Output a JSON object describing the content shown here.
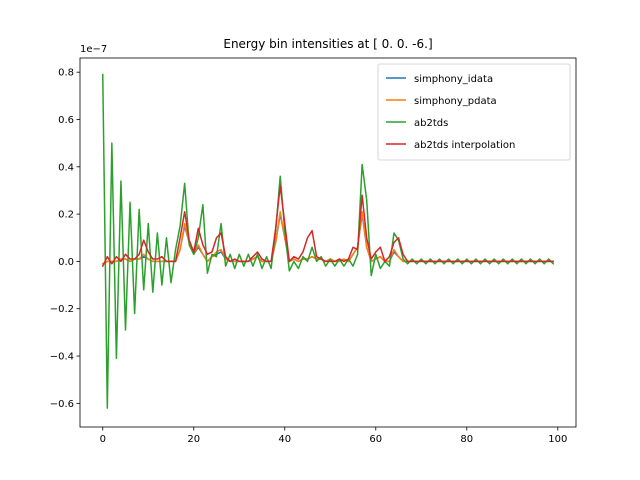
{
  "chart_data": {
    "type": "line",
    "title": "Energy bin intensities at [ 0.  0. -6.]",
    "xlabel": "",
    "ylabel": "",
    "offset_label": "1e−7",
    "xlim": [
      -5,
      104
    ],
    "ylim": [
      -0.7,
      0.86
    ],
    "xticks": [
      0,
      20,
      40,
      60,
      80,
      100
    ],
    "yticks": [
      -0.6,
      -0.4,
      -0.2,
      0.0,
      0.2,
      0.4,
      0.6,
      0.8
    ],
    "ytick_labels": [
      "−0.6",
      "−0.4",
      "−0.2",
      "0.0",
      "0.2",
      "0.4",
      "0.6",
      "0.8"
    ],
    "grid": false,
    "legend_position": "top-right",
    "x": [
      0,
      1,
      2,
      3,
      4,
      5,
      6,
      7,
      8,
      9,
      10,
      11,
      12,
      13,
      14,
      15,
      16,
      17,
      18,
      19,
      20,
      21,
      22,
      23,
      24,
      25,
      26,
      27,
      28,
      29,
      30,
      31,
      32,
      33,
      34,
      35,
      36,
      37,
      38,
      39,
      40,
      41,
      42,
      43,
      44,
      45,
      46,
      47,
      48,
      49,
      50,
      51,
      52,
      53,
      54,
      55,
      56,
      57,
      58,
      59,
      60,
      61,
      62,
      63,
      64,
      65,
      66,
      67,
      68,
      69,
      70,
      71,
      72,
      73,
      74,
      75,
      76,
      77,
      78,
      79,
      80,
      81,
      82,
      83,
      84,
      85,
      86,
      87,
      88,
      89,
      90,
      91,
      92,
      93,
      94,
      95,
      96,
      97,
      98,
      99
    ],
    "series": [
      {
        "name": "simphony_idata",
        "color": "#1f77b4",
        "values": [
          -0.01,
          0.0,
          0.0,
          0.0,
          0.01,
          0.01,
          0.0,
          0.01,
          0.01,
          0.02,
          0.01,
          0.0,
          0.0,
          0.0,
          0.0,
          0.0,
          0.0,
          0.05,
          0.15,
          0.08,
          0.03,
          0.06,
          0.03,
          0.0,
          0.02,
          0.03,
          0.04,
          0.01,
          0.0,
          0.0,
          0.0,
          0.0,
          0.0,
          0.01,
          0.02,
          0.0,
          0.0,
          0.0,
          0.08,
          0.2,
          0.1,
          0.0,
          0.01,
          0.0,
          0.01,
          0.01,
          0.02,
          0.01,
          0.01,
          0.0,
          0.01,
          0.0,
          0.0,
          0.01,
          0.0,
          0.03,
          0.06,
          0.2,
          0.06,
          0.0,
          0.01,
          0.02,
          0.0,
          0.0,
          0.04,
          0.02,
          0.0,
          0.0,
          0.0,
          0.0,
          0.0,
          0.0,
          0.0,
          0.0,
          0.0,
          0.0,
          0.0,
          0.0,
          0.0,
          0.0,
          0.0,
          0.0,
          0.0,
          0.0,
          0.0,
          0.0,
          0.0,
          0.0,
          0.0,
          0.0,
          0.0,
          0.0,
          0.0,
          0.0,
          0.0,
          0.0,
          0.0,
          0.0,
          0.0,
          0.0
        ]
      },
      {
        "name": "simphony_pdata",
        "color": "#ff7f0e",
        "values": [
          -0.01,
          0.0,
          0.0,
          0.0,
          0.01,
          0.01,
          0.0,
          0.01,
          0.01,
          0.03,
          0.01,
          0.0,
          0.0,
          0.0,
          0.0,
          0.0,
          0.0,
          0.05,
          0.16,
          0.08,
          0.03,
          0.07,
          0.03,
          0.0,
          0.02,
          0.04,
          0.05,
          0.01,
          0.0,
          0.0,
          0.0,
          0.0,
          0.0,
          0.01,
          0.02,
          0.0,
          0.0,
          0.0,
          0.08,
          0.21,
          0.1,
          0.0,
          0.01,
          0.0,
          0.01,
          0.01,
          0.02,
          0.01,
          0.01,
          0.0,
          0.01,
          0.0,
          0.0,
          0.01,
          0.0,
          0.03,
          0.06,
          0.21,
          0.06,
          0.0,
          0.01,
          0.02,
          0.0,
          0.0,
          0.05,
          0.02,
          0.0,
          0.0,
          0.0,
          0.0,
          0.0,
          0.0,
          0.0,
          0.0,
          0.0,
          0.0,
          0.0,
          0.0,
          0.0,
          0.0,
          0.0,
          0.0,
          0.0,
          0.0,
          0.0,
          0.0,
          0.0,
          0.0,
          0.0,
          0.0,
          0.0,
          0.0,
          0.0,
          0.0,
          0.0,
          0.0,
          0.0,
          0.0,
          0.0,
          0.0
        ]
      },
      {
        "name": "ab2tds",
        "color": "#2ca02c",
        "values": [
          0.79,
          -0.62,
          0.5,
          -0.41,
          0.34,
          -0.29,
          0.25,
          -0.22,
          0.22,
          -0.12,
          0.16,
          -0.13,
          0.12,
          -0.1,
          0.1,
          -0.09,
          0.05,
          0.15,
          0.33,
          0.07,
          0.03,
          0.1,
          0.24,
          -0.05,
          0.03,
          0.02,
          0.16,
          -0.02,
          0.03,
          -0.03,
          0.03,
          -0.02,
          0.03,
          -0.02,
          0.03,
          -0.03,
          0.02,
          -0.03,
          0.13,
          0.36,
          0.13,
          -0.04,
          0.0,
          -0.03,
          0.02,
          0.0,
          0.06,
          0.0,
          0.02,
          -0.02,
          0.01,
          -0.02,
          0.01,
          -0.02,
          0.01,
          -0.02,
          0.03,
          0.41,
          0.26,
          -0.06,
          0.03,
          -0.03,
          0.0,
          -0.02,
          0.12,
          0.09,
          0.01,
          -0.01,
          0.01,
          -0.01,
          0.01,
          -0.01,
          0.01,
          -0.01,
          0.01,
          -0.01,
          0.01,
          -0.01,
          0.01,
          -0.01,
          0.01,
          -0.01,
          0.01,
          -0.01,
          0.01,
          -0.01,
          0.01,
          -0.01,
          0.01,
          -0.01,
          0.01,
          -0.01,
          0.01,
          -0.01,
          0.01,
          -0.01,
          0.01,
          -0.01,
          0.01,
          -0.01
        ]
      },
      {
        "name": "ab2tds interpolation",
        "color": "#d62728",
        "values": [
          -0.02,
          0.02,
          -0.01,
          0.02,
          0.0,
          0.03,
          0.01,
          0.01,
          0.03,
          0.09,
          0.04,
          0.01,
          0.01,
          0.02,
          0.0,
          0.0,
          0.0,
          0.1,
          0.21,
          0.09,
          0.04,
          0.14,
          0.07,
          0.03,
          0.04,
          0.1,
          0.12,
          0.02,
          0.0,
          0.01,
          0.0,
          0.0,
          0.0,
          0.02,
          0.04,
          0.01,
          0.0,
          0.0,
          0.14,
          0.32,
          0.16,
          0.0,
          0.02,
          0.01,
          0.04,
          0.1,
          0.13,
          0.02,
          0.01,
          0.0,
          0.0,
          0.0,
          0.01,
          0.0,
          0.01,
          0.06,
          0.05,
          0.28,
          0.1,
          0.01,
          0.04,
          0.06,
          0.0,
          0.02,
          0.08,
          0.1,
          0.03,
          0.0,
          0.0,
          0.0,
          0.0,
          0.0,
          0.0,
          0.0,
          0.0,
          0.0,
          0.0,
          0.0,
          0.0,
          0.0,
          0.0,
          0.0,
          0.0,
          0.0,
          0.0,
          0.0,
          0.0,
          0.0,
          0.0,
          0.0,
          0.0,
          0.0,
          0.0,
          0.0,
          0.0,
          0.0,
          0.0,
          0.0,
          0.0,
          0.0
        ]
      }
    ]
  }
}
